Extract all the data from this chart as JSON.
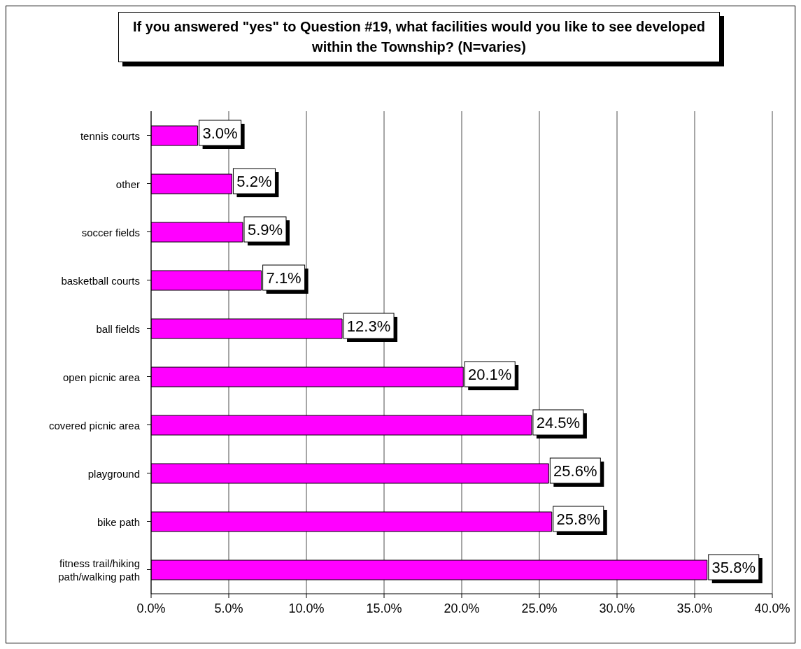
{
  "chart_data": {
    "type": "bar",
    "orientation": "horizontal",
    "title": "If you answered \"yes\" to Question #19, what facilities would you like to see developed within the Township? (N=varies)",
    "categories": [
      "tennis courts",
      "other",
      "soccer fields",
      "basketball courts",
      "ball fields",
      "open picnic area",
      "covered picnic area",
      "playground",
      "bike path",
      "fitness trail/hiking path/walking path"
    ],
    "values": [
      3.0,
      5.2,
      5.9,
      7.1,
      12.3,
      20.1,
      24.5,
      25.6,
      25.8,
      35.8
    ],
    "value_labels": [
      "3.0%",
      "5.2%",
      "5.9%",
      "7.1%",
      "12.3%",
      "20.1%",
      "24.5%",
      "25.6%",
      "25.8%",
      "35.8%"
    ],
    "color": "#ff00ff",
    "xlim": [
      0,
      40
    ],
    "xticks": [
      {
        "value": 0,
        "label": "0.0%"
      },
      {
        "value": 5,
        "label": "5.0%"
      },
      {
        "value": 10,
        "label": "10.0%"
      },
      {
        "value": 15,
        "label": "15.0%"
      },
      {
        "value": 20,
        "label": "20.0%"
      },
      {
        "value": 25,
        "label": "25.0%"
      },
      {
        "value": 30,
        "label": "30.0%"
      },
      {
        "value": 35,
        "label": "35.0%"
      },
      {
        "value": 40,
        "label": "40.0%"
      }
    ],
    "grid": "x",
    "legend": false
  }
}
